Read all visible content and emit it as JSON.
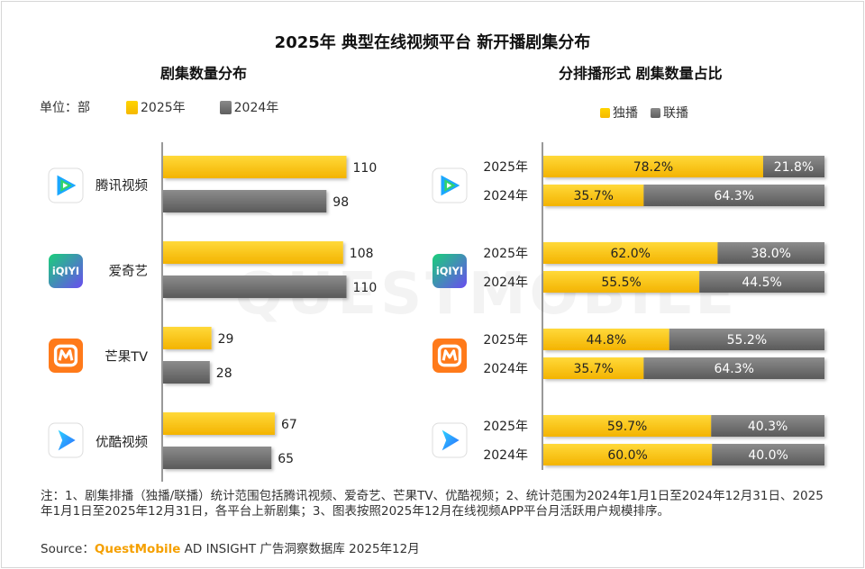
{
  "title": "2025年 典型在线视频平台 新开播剧集分布",
  "watermark": "QUESTMOBILE",
  "colors": {
    "y2025": "#f7c000",
    "y2024": "#707070",
    "exclusive": "#f7c000",
    "shared": "#707070"
  },
  "left": {
    "subtitle": "剧集数量分布",
    "unit": "单位：部",
    "legend": [
      "2025年",
      "2024年"
    ]
  },
  "right": {
    "subtitle": "分排播形式 剧集数量占比",
    "legend": [
      "独播",
      "联播"
    ]
  },
  "platforms": [
    {
      "name": "腾讯视频",
      "icon": "tencent-video-icon"
    },
    {
      "name": "爱奇艺",
      "icon": "iqiyi-icon"
    },
    {
      "name": "芒果TV",
      "icon": "mgtv-icon"
    },
    {
      "name": "优酷视频",
      "icon": "youku-icon"
    }
  ],
  "chart_data": [
    {
      "type": "bar",
      "orientation": "horizontal",
      "title": "剧集数量分布",
      "categories": [
        "腾讯视频",
        "爱奇艺",
        "芒果TV",
        "优酷视频"
      ],
      "series": [
        {
          "name": "2025年",
          "values": [
            110,
            108,
            29,
            67
          ]
        },
        {
          "name": "2024年",
          "values": [
            98,
            110,
            28,
            65
          ]
        }
      ],
      "unit": "单位：部"
    },
    {
      "type": "bar",
      "orientation": "horizontal",
      "stacked": "percent",
      "title": "分排播形式 剧集数量占比",
      "categories": [
        "腾讯视频",
        "爱奇艺",
        "芒果TV",
        "优酷视频"
      ],
      "years": [
        "2025年",
        "2024年"
      ],
      "series": [
        {
          "name": "独播",
          "values": [
            [
              78.2,
              35.7
            ],
            [
              62.0,
              55.5
            ],
            [
              44.8,
              35.7
            ],
            [
              59.7,
              60.0
            ]
          ]
        },
        {
          "name": "联播",
          "values": [
            [
              21.8,
              64.3
            ],
            [
              38.0,
              44.5
            ],
            [
              55.2,
              64.3
            ],
            [
              40.3,
              40.0
            ]
          ]
        }
      ]
    }
  ],
  "note": "注：1、剧集排播（独播/联播）统计范围包括腾讯视频、爱奇艺、芒果TV、优酷视频；2、统计范围为2024年1月1日至2024年12月31日、2025年1月1日至2025年12月31日，各平台上新剧集；3、图表按照2025年12月在线视频APP平台月活跃用户规模排序。",
  "source_label": "Source：",
  "source_brand": "QuestMobile",
  "source_text": " AD INSIGHT 广告洞察数据库 2025年12月"
}
